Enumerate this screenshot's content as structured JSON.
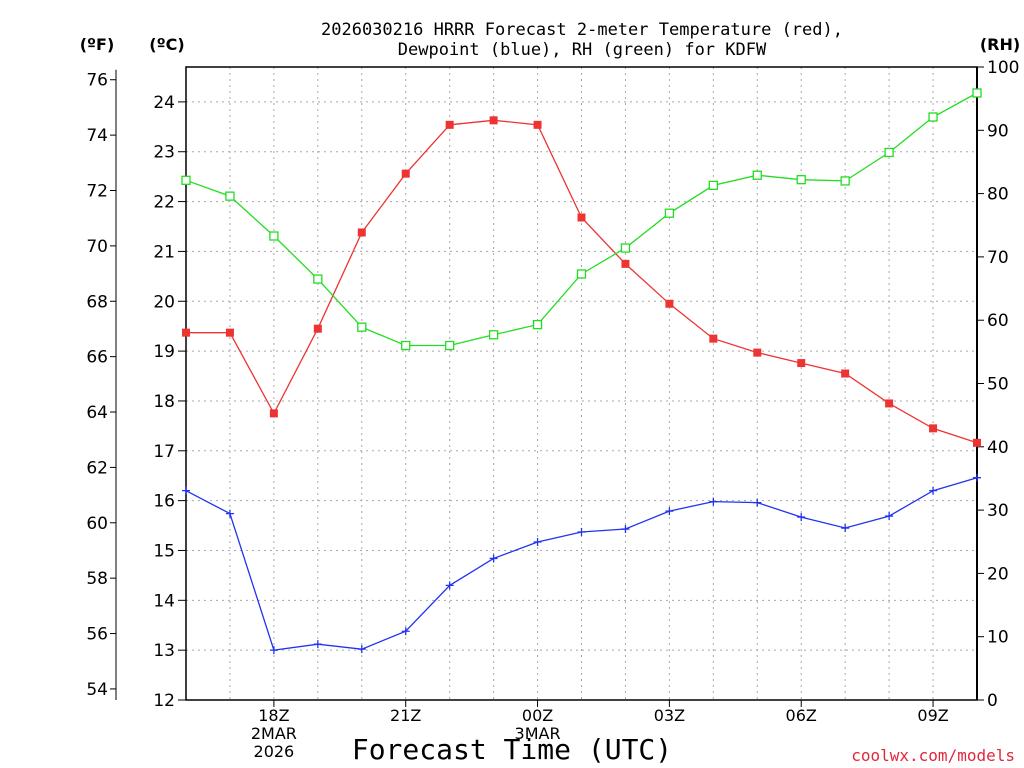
{
  "chart_data": {
    "type": "line",
    "title_line1": "2026030216 HRRR Forecast 2-meter Temperature (red),",
    "title_line2": "Dewpoint (blue), RH (green) for KDFW",
    "left_outer_unit": "(ºF)",
    "left_inner_unit": "(ºC)",
    "right_unit": "(RH)",
    "xlabel": "Forecast Time (UTC)",
    "credit": "coolwx.com/models",
    "x_hours": [
      0,
      1,
      2,
      3,
      4,
      5,
      6,
      7,
      8,
      9,
      10,
      11,
      12,
      13,
      14,
      15,
      16,
      17,
      18
    ],
    "x_ticks": [
      {
        "hour": 2,
        "lines": [
          "18Z",
          "2MAR",
          "2026"
        ]
      },
      {
        "hour": 5,
        "lines": [
          "21Z"
        ]
      },
      {
        "hour": 8,
        "lines": [
          "00Z",
          "3MAR"
        ]
      },
      {
        "hour": 11,
        "lines": [
          "03Z"
        ]
      },
      {
        "hour": 14,
        "lines": [
          "06Z"
        ]
      },
      {
        "hour": 17,
        "lines": [
          "09Z"
        ]
      }
    ],
    "celsius_range": [
      12,
      24.7
    ],
    "celsius_ticks": [
      "12",
      "13",
      "14",
      "15",
      "16",
      "17",
      "18",
      "19",
      "20",
      "21",
      "22",
      "23",
      "24"
    ],
    "fahrenheit_ticks": [
      "54",
      "56",
      "58",
      "60",
      "62",
      "64",
      "66",
      "68",
      "70",
      "72",
      "74",
      "76"
    ],
    "rh_range": [
      0,
      100
    ],
    "rh_ticks": [
      "0",
      "10",
      "20",
      "30",
      "40",
      "50",
      "60",
      "70",
      "80",
      "90",
      "100"
    ],
    "series": [
      {
        "name": "Temperature",
        "unit": "C",
        "color": "#ee3333",
        "marker": "filled-square",
        "values": [
          19.37,
          19.37,
          17.75,
          19.45,
          21.38,
          22.56,
          23.54,
          23.63,
          23.54,
          21.68,
          20.75,
          19.95,
          19.25,
          18.97,
          18.76,
          18.55,
          17.95,
          17.45,
          17.16
        ]
      },
      {
        "name": "Dewpoint",
        "unit": "C",
        "color": "#2233ee",
        "marker": "plus",
        "values": [
          16.2,
          15.74,
          13.0,
          13.12,
          13.02,
          13.38,
          14.3,
          14.84,
          15.17,
          15.37,
          15.43,
          15.79,
          15.98,
          15.96,
          15.67,
          15.45,
          15.69,
          16.2,
          16.46
        ]
      },
      {
        "name": "RH",
        "unit": "%",
        "color": "#22dd22",
        "marker": "open-square",
        "values": [
          82.1,
          79.6,
          73.3,
          66.5,
          58.9,
          56.0,
          56.0,
          57.7,
          59.3,
          67.3,
          71.4,
          76.9,
          81.3,
          82.9,
          82.2,
          82.0,
          86.5,
          92.1,
          95.9
        ]
      }
    ]
  }
}
